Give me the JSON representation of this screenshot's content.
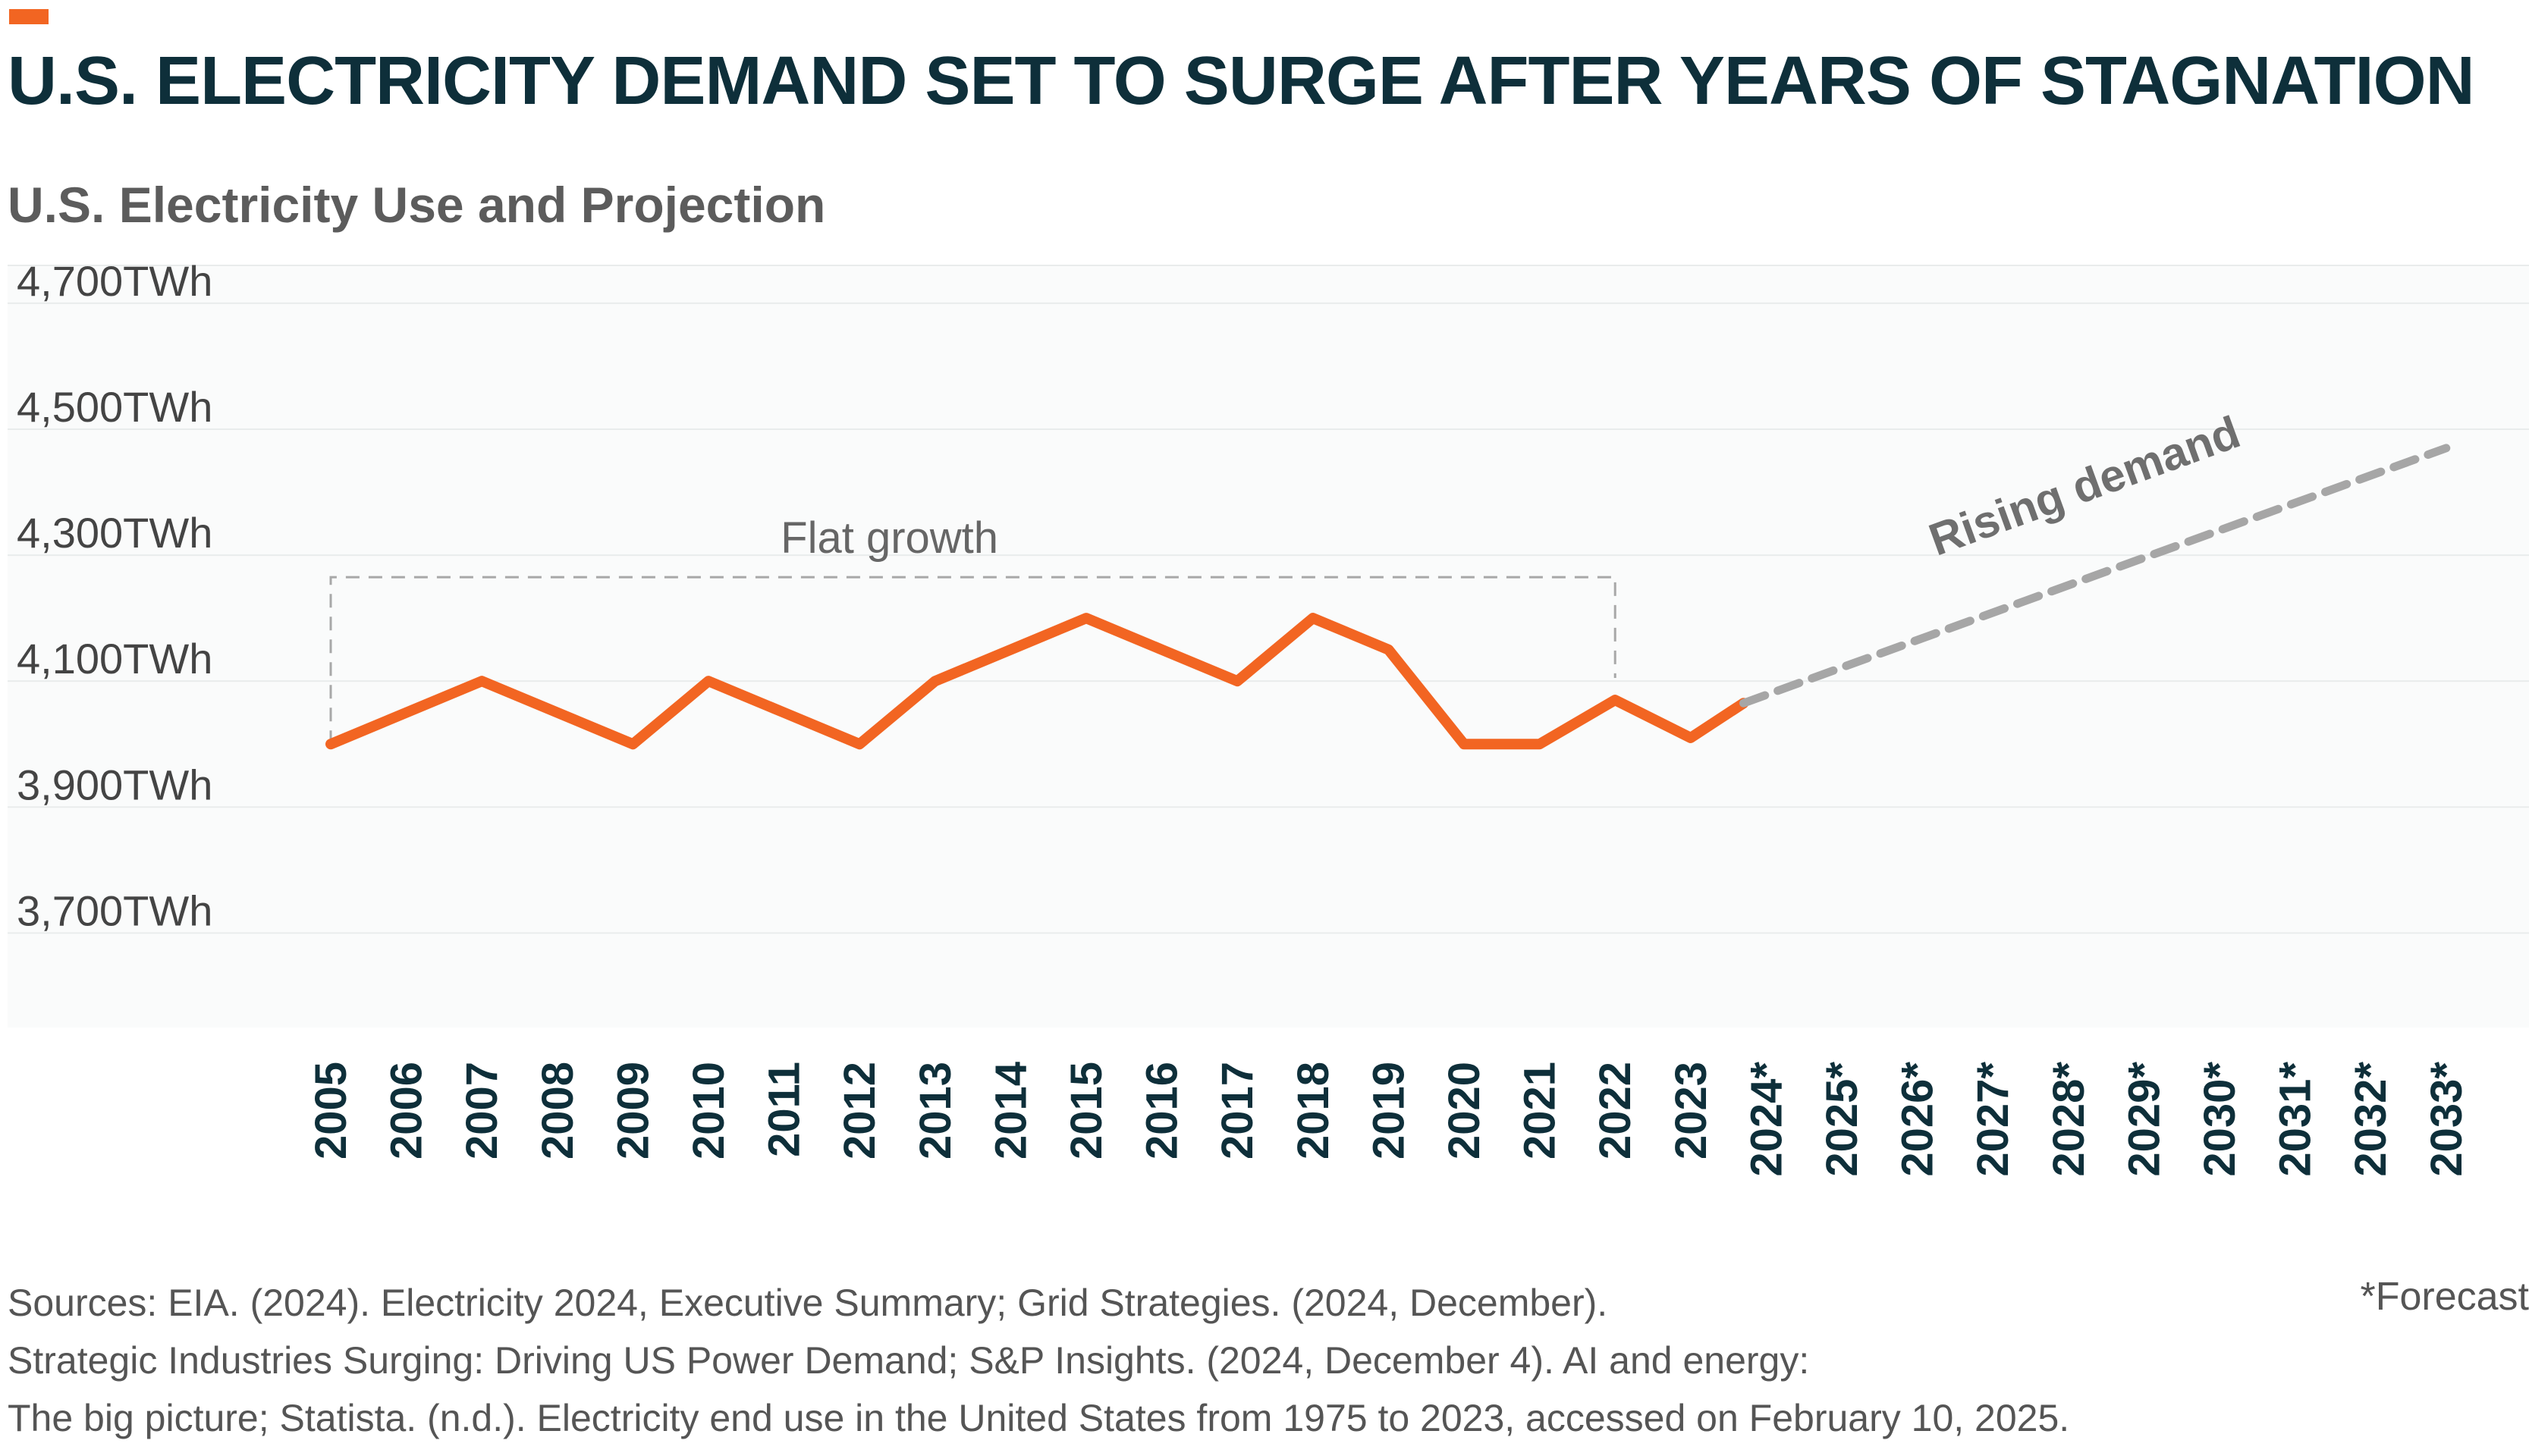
{
  "header": {
    "title": "U.S. ELECTRICITY DEMAND SET TO SURGE AFTER YEARS OF STAGNATION",
    "subtitle": "U.S. Electricity Use and Projection",
    "accent_color": "#f26522"
  },
  "chart_data": {
    "type": "line",
    "title": "",
    "ylabel": "",
    "xlabel": "",
    "categories": [
      "2005",
      "2006",
      "2007",
      "2008",
      "2009",
      "2010",
      "2011",
      "2012",
      "2013",
      "2014",
      "2015",
      "2016",
      "2017",
      "2018",
      "2019",
      "2020",
      "2021",
      "2022",
      "2023",
      "2024*",
      "2025*",
      "2026*",
      "2027*",
      "2028*",
      "2029*",
      "2030*",
      "2031*",
      "2032*",
      "2033*"
    ],
    "y_ticks": [
      {
        "value": 4700,
        "label": "4,700TWh"
      },
      {
        "value": 4500,
        "label": "4,500TWh"
      },
      {
        "value": 4300,
        "label": "4,300TWh"
      },
      {
        "value": 4100,
        "label": "4,100TWh"
      },
      {
        "value": 3900,
        "label": "3,900TWh"
      },
      {
        "value": 3700,
        "label": "3,700TWh"
      }
    ],
    "ylim": [
      3550,
      4760
    ],
    "grid": true,
    "series": [
      {
        "style": "solid",
        "color": "#f26522",
        "x": [
          "2005",
          "2006",
          "2007",
          "2008",
          "2009",
          "2010",
          "2011",
          "2012",
          "2013",
          "2014",
          "2015",
          "2016",
          "2017",
          "2018",
          "2019",
          "2020",
          "2021",
          "2022",
          "2023",
          "2023.7"
        ],
        "values": [
          4000,
          4050,
          4100,
          4050,
          4000,
          4100,
          4050,
          4000,
          4100,
          4150,
          4200,
          4150,
          4100,
          4200,
          4150,
          4000,
          4000,
          4070,
          4010,
          4065
        ]
      },
      {
        "style": "dashed",
        "color": "#a6a6a6",
        "x": [
          "2023.7",
          "2033*"
        ],
        "values": [
          4065,
          4470
        ]
      }
    ],
    "annotations": [
      {
        "id": "flat",
        "text": "Flat growth",
        "box_x": [
          "2005",
          "2022"
        ],
        "box_top": 4265
      },
      {
        "id": "rising",
        "text": "Rising demand"
      }
    ]
  },
  "footer": {
    "sources": [
      "Sources: EIA. (2024). Electricity 2024, Executive Summary; Grid Strategies. (2024, December).",
      "Strategic Industries Surging: Driving US Power Demand; S&P Insights. (2024, December 4). AI and energy:",
      "The big picture; Statista. (n.d.). Electricity end use in the United States from 1975 to 2023, accessed on February 10, 2025."
    ],
    "forecast_note": "*Forecast"
  }
}
